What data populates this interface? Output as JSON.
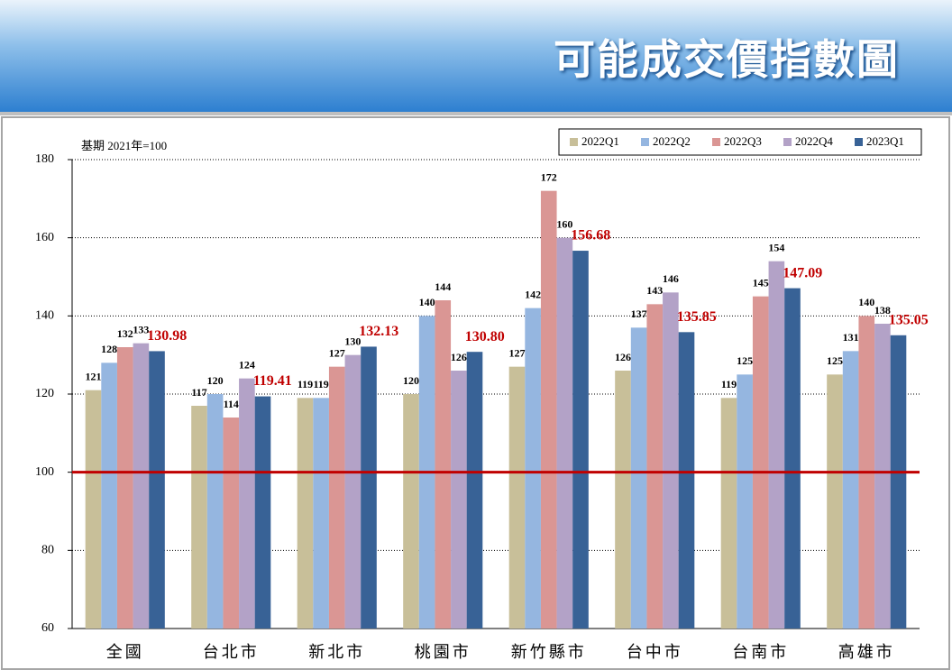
{
  "chart_data": {
    "type": "bar",
    "title": "可能成交價指數圖",
    "annotation": "基期 2021年=100",
    "categories": [
      "全國",
      "台北市",
      "新北市",
      "桃園市",
      "新竹縣市",
      "台中市",
      "台南市",
      "高雄市"
    ],
    "series": [
      {
        "name": "2022Q1",
        "color": "#c8bf99",
        "values": [
          121,
          117,
          119,
          120,
          127,
          126,
          119,
          125
        ]
      },
      {
        "name": "2022Q2",
        "color": "#95b6e0",
        "values": [
          128,
          120,
          119,
          140,
          142,
          137,
          125,
          131
        ]
      },
      {
        "name": "2022Q3",
        "color": "#da9694",
        "values": [
          132,
          114,
          127,
          144,
          172,
          143,
          145,
          140
        ]
      },
      {
        "name": "2022Q4",
        "color": "#b3a2c7",
        "values": [
          133,
          124,
          130,
          126,
          160,
          146,
          154,
          138
        ]
      },
      {
        "name": "2023Q1",
        "color": "#386296",
        "label_color": "#c00000",
        "values": [
          130.98,
          119.41,
          132.13,
          130.8,
          156.68,
          135.85,
          147.09,
          135.05
        ],
        "value_labels": [
          "130.98",
          "119.41",
          "132.13",
          "130.80",
          "156.68",
          "135.85",
          "147.09",
          "135.05"
        ]
      }
    ],
    "ylim": [
      60,
      180
    ],
    "yticks": [
      60,
      80,
      100,
      120,
      140,
      160,
      180
    ],
    "grid": true,
    "reference_line": {
      "value": 100,
      "color": "#c00000"
    },
    "legend": "top-right"
  }
}
